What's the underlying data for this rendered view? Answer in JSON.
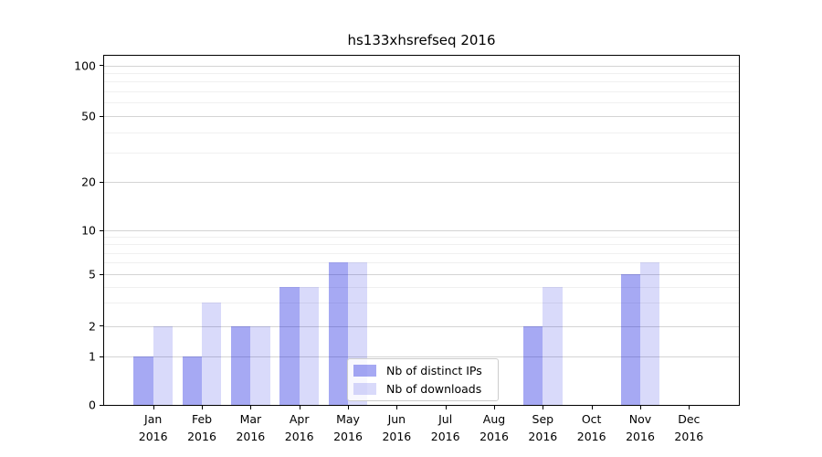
{
  "title": "hs133xhsrefseq 2016",
  "chart_data": {
    "type": "bar",
    "title": "hs133xhsrefseq 2016",
    "categories": [
      "Jan",
      "Feb",
      "Mar",
      "Apr",
      "May",
      "Jun",
      "Jul",
      "Aug",
      "Sep",
      "Oct",
      "Nov",
      "Dec"
    ],
    "year_label": "2016",
    "series": [
      {
        "name": "Nb of distinct IPs",
        "color": "rgba(0,10,220,0.35)",
        "color_hex_on_white": "#a5a7f2",
        "values": [
          1,
          1,
          2,
          4,
          6,
          0,
          0,
          0,
          2,
          0,
          5,
          0
        ]
      },
      {
        "name": "Nb of downloads",
        "color": "rgba(0,10,220,0.15)",
        "color_hex_on_white": "#dadbf8",
        "values": [
          2,
          3,
          2,
          4,
          6,
          0,
          0,
          0,
          4,
          0,
          6,
          0
        ]
      }
    ],
    "xlabel": "",
    "ylabel": "",
    "yscale": "symlog",
    "ylim": [
      0,
      115
    ],
    "yticks": [
      0,
      1,
      2,
      5,
      10,
      20,
      50,
      100
    ],
    "minor_ticks": [
      3,
      4,
      6,
      7,
      8,
      9,
      30,
      40,
      60,
      70,
      80,
      90
    ],
    "grid": true,
    "legend_position": "lower center"
  },
  "legend": {
    "items": [
      "Nb of distinct IPs",
      "Nb of downloads"
    ]
  },
  "colors": {
    "bar_dark": "#a5a7f2",
    "bar_light": "#dadbf8",
    "grid_major": "#d4d4d4",
    "grid_minor": "#f0f0f0",
    "frame": "#000000",
    "legend_border": "#cccccc"
  }
}
